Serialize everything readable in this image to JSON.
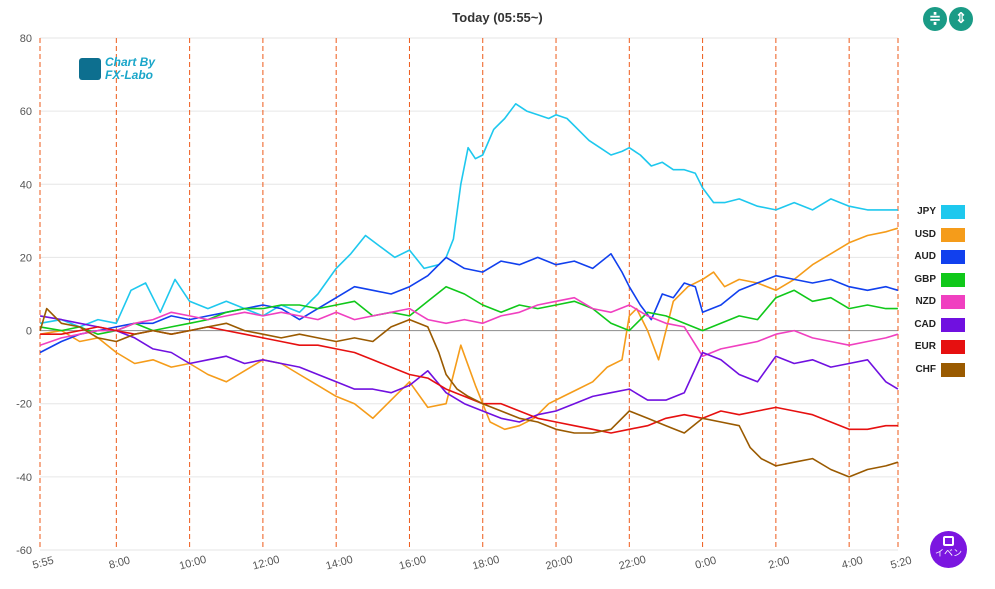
{
  "header": {
    "title": "Today  (05:55~)",
    "btn_split_icon": "split-vertical-icon",
    "btn_fit_icon": "fit-height-icon",
    "btn_split_glyph": "≑",
    "btn_fit_glyph": "⇕"
  },
  "logo": {
    "line1": "Chart By",
    "line2": "FX-Labo",
    "icon": "chart-logo-icon"
  },
  "event_button": {
    "label": "イベン",
    "icon": "calendar-icon"
  },
  "chart_data": {
    "type": "line",
    "title": "Today  (05:55~)",
    "xlabel": "",
    "ylabel": "",
    "ylim": [
      -60,
      80
    ],
    "yticks": [
      -60,
      -40,
      -20,
      0,
      20,
      40,
      60,
      80
    ],
    "xlim_hours": [
      5.9167,
      29.3333
    ],
    "xticks": [
      {
        "h": 5.9167,
        "label": "5:55"
      },
      {
        "h": 8,
        "label": "8:00"
      },
      {
        "h": 10,
        "label": "10:00"
      },
      {
        "h": 12,
        "label": "12:00"
      },
      {
        "h": 14,
        "label": "14:00"
      },
      {
        "h": 16,
        "label": "16:00"
      },
      {
        "h": 18,
        "label": "18:00"
      },
      {
        "h": 20,
        "label": "20:00"
      },
      {
        "h": 22,
        "label": "22:00"
      },
      {
        "h": 24,
        "label": "0:00"
      },
      {
        "h": 26,
        "label": "2:00"
      },
      {
        "h": 28,
        "label": "4:00"
      },
      {
        "h": 29.3333,
        "label": "5:20"
      }
    ],
    "vlines_hours": [
      5.9167,
      8,
      10,
      12,
      14,
      16,
      18,
      20,
      22,
      24,
      26,
      28,
      29.3333
    ],
    "grid": true,
    "legend_position": "right",
    "series": [
      {
        "name": "JPY",
        "color": "#1ec8ee",
        "x": [
          5.92,
          6.5,
          7,
          7.5,
          8,
          8.4,
          8.8,
          9.2,
          9.6,
          10,
          10.5,
          11,
          11.5,
          12,
          12.5,
          13,
          13.5,
          14,
          14.4,
          14.8,
          15.2,
          15.6,
          16,
          16.4,
          16.8,
          17,
          17.2,
          17.4,
          17.6,
          17.8,
          18,
          18.3,
          18.6,
          18.9,
          19.2,
          19.5,
          19.8,
          20,
          20.3,
          20.6,
          20.9,
          21.2,
          21.5,
          21.8,
          22,
          22.3,
          22.6,
          22.9,
          23.2,
          23.5,
          23.8,
          24,
          24.3,
          24.6,
          25,
          25.5,
          26,
          26.5,
          27,
          27.5,
          28,
          28.5,
          29,
          29.33
        ],
        "y": [
          2,
          3,
          1,
          3,
          2,
          11,
          13,
          5,
          14,
          8,
          6,
          8,
          6,
          4,
          7,
          5,
          10,
          17,
          21,
          26,
          23,
          20,
          22,
          17,
          18,
          20,
          25,
          40,
          50,
          47,
          48,
          55,
          58,
          62,
          60,
          59,
          58,
          59,
          58,
          55,
          52,
          50,
          48,
          49,
          50,
          48,
          45,
          46,
          44,
          44,
          43,
          39,
          35,
          35,
          36,
          34,
          33,
          35,
          33,
          36,
          34,
          33,
          33,
          33
        ]
      },
      {
        "name": "USD",
        "color": "#f59c1a",
        "x": [
          5.92,
          6.5,
          7,
          7.5,
          8,
          8.5,
          9,
          9.5,
          10,
          10.5,
          11,
          11.5,
          12,
          12.5,
          13,
          13.5,
          14,
          14.5,
          15,
          15.5,
          16,
          16.5,
          17,
          17.4,
          17.8,
          18.2,
          18.6,
          19,
          19.4,
          19.8,
          20.2,
          20.6,
          21,
          21.4,
          21.8,
          22,
          22.2,
          22.5,
          22.8,
          23.2,
          23.6,
          24,
          24.3,
          24.6,
          25,
          25.5,
          26,
          26.5,
          27,
          27.5,
          28,
          28.5,
          29,
          29.33
        ],
        "y": [
          -1,
          0,
          -3,
          -2,
          -6,
          -9,
          -8,
          -10,
          -9,
          -12,
          -14,
          -11,
          -8,
          -9,
          -12,
          -15,
          -18,
          -20,
          -24,
          -19,
          -14,
          -21,
          -20,
          -4,
          -15,
          -25,
          -27,
          -26,
          -24,
          -20,
          -18,
          -16,
          -14,
          -10,
          -8,
          4,
          6,
          0,
          -8,
          8,
          12,
          14,
          16,
          12,
          14,
          13,
          11,
          14,
          18,
          21,
          24,
          26,
          27,
          28
        ]
      },
      {
        "name": "AUD",
        "color": "#1140ee",
        "x": [
          5.92,
          6.5,
          7,
          7.5,
          8,
          8.5,
          9,
          9.5,
          10,
          10.5,
          11,
          11.5,
          12,
          12.5,
          13,
          13.5,
          14,
          14.5,
          15,
          15.5,
          16,
          16.5,
          17,
          17.5,
          18,
          18.5,
          19,
          19.5,
          20,
          20.5,
          21,
          21.5,
          21.8,
          22,
          22.3,
          22.6,
          22.9,
          23.2,
          23.5,
          23.8,
          24,
          24.5,
          25,
          25.5,
          26,
          26.5,
          27,
          27.5,
          28,
          28.5,
          29,
          29.33
        ],
        "y": [
          -6,
          -3,
          -1,
          0,
          1,
          2,
          2,
          4,
          3,
          4,
          5,
          6,
          7,
          6,
          3,
          6,
          9,
          12,
          11,
          10,
          12,
          15,
          20,
          17,
          16,
          19,
          18,
          20,
          18,
          19,
          17,
          21,
          16,
          12,
          7,
          3,
          10,
          9,
          13,
          12,
          5,
          7,
          11,
          13,
          15,
          14,
          13,
          14,
          12,
          11,
          12,
          11
        ]
      },
      {
        "name": "GBP",
        "color": "#10c81a",
        "x": [
          5.92,
          6.5,
          7,
          7.5,
          8,
          8.5,
          9,
          9.5,
          10,
          10.5,
          11,
          11.5,
          12,
          12.5,
          13,
          13.5,
          14,
          14.5,
          15,
          15.5,
          16,
          16.5,
          17,
          17.5,
          18,
          18.5,
          19,
          19.5,
          20,
          20.5,
          21,
          21.5,
          22,
          22.5,
          23,
          23.5,
          24,
          24.5,
          25,
          25.5,
          26,
          26.5,
          27,
          27.5,
          28,
          28.5,
          29,
          29.33
        ],
        "y": [
          1,
          0,
          1,
          -1,
          0,
          2,
          0,
          1,
          2,
          3,
          5,
          6,
          6,
          7,
          7,
          6,
          7,
          8,
          4,
          5,
          4,
          8,
          12,
          10,
          7,
          5,
          7,
          6,
          7,
          8,
          6,
          2,
          0,
          5,
          4,
          2,
          0,
          2,
          4,
          3,
          9,
          11,
          8,
          9,
          6,
          7,
          6,
          6
        ]
      },
      {
        "name": "NZD",
        "color": "#f040c0",
        "x": [
          5.92,
          6.5,
          7,
          7.5,
          8,
          8.5,
          9,
          9.5,
          10,
          10.5,
          11,
          11.5,
          12,
          12.5,
          13,
          13.5,
          14,
          14.5,
          15,
          15.5,
          16,
          16.5,
          17,
          17.5,
          18,
          18.5,
          19,
          19.5,
          20,
          20.5,
          21,
          21.5,
          22,
          22.5,
          23,
          23.5,
          24,
          24.5,
          25,
          25.5,
          26,
          26.5,
          27,
          27.5,
          28,
          28.5,
          29,
          29.33
        ],
        "y": [
          -4,
          -2,
          -1,
          0,
          0,
          2,
          3,
          5,
          4,
          3,
          4,
          5,
          4,
          5,
          4,
          3,
          5,
          3,
          4,
          5,
          6,
          3,
          2,
          3,
          2,
          4,
          5,
          7,
          8,
          9,
          6,
          5,
          7,
          4,
          2,
          1,
          -7,
          -5,
          -4,
          -3,
          -1,
          0,
          -2,
          -3,
          -4,
          -3,
          -2,
          -1
        ]
      },
      {
        "name": "CAD",
        "color": "#7010e0",
        "x": [
          5.92,
          6.5,
          7,
          7.5,
          8,
          8.5,
          9,
          9.5,
          10,
          10.5,
          11,
          11.5,
          12,
          12.5,
          13,
          13.5,
          14,
          14.5,
          15,
          15.5,
          16,
          16.5,
          17,
          17.5,
          18,
          18.5,
          19,
          19.5,
          20,
          20.5,
          21,
          21.5,
          22,
          22.5,
          23,
          23.5,
          24,
          24.5,
          25,
          25.5,
          26,
          26.5,
          27,
          27.5,
          28,
          28.5,
          29,
          29.33
        ],
        "y": [
          4,
          3,
          2,
          1,
          0,
          -2,
          -5,
          -6,
          -9,
          -8,
          -7,
          -9,
          -8,
          -9,
          -10,
          -12,
          -14,
          -16,
          -16,
          -17,
          -15,
          -11,
          -17,
          -20,
          -22,
          -24,
          -25,
          -23,
          -22,
          -20,
          -18,
          -17,
          -16,
          -19,
          -19,
          -17,
          -6,
          -8,
          -12,
          -14,
          -7,
          -9,
          -8,
          -10,
          -9,
          -8,
          -14,
          -16
        ]
      },
      {
        "name": "EUR",
        "color": "#e61010",
        "x": [
          5.92,
          6.5,
          7,
          7.5,
          8,
          8.5,
          9,
          9.5,
          10,
          10.5,
          11,
          11.5,
          12,
          12.5,
          13,
          13.5,
          14,
          14.5,
          15,
          15.5,
          16,
          16.5,
          17,
          17.5,
          18,
          18.5,
          19,
          19.5,
          20,
          20.5,
          21,
          21.5,
          22,
          22.5,
          23,
          23.5,
          24,
          24.5,
          25,
          25.5,
          26,
          26.5,
          27,
          27.5,
          28,
          28.5,
          29,
          29.33
        ],
        "y": [
          -1,
          -1,
          0,
          1,
          0,
          -1,
          0,
          -1,
          0,
          1,
          0,
          -1,
          -2,
          -3,
          -4,
          -4,
          -5,
          -6,
          -8,
          -10,
          -12,
          -13,
          -16,
          -18,
          -20,
          -20,
          -22,
          -24,
          -25,
          -26,
          -27,
          -28,
          -27,
          -26,
          -24,
          -23,
          -24,
          -22,
          -23,
          -22,
          -21,
          -22,
          -23,
          -25,
          -27,
          -27,
          -26,
          -26
        ]
      },
      {
        "name": "CHF",
        "color": "#9a5a00",
        "x": [
          5.92,
          6.1,
          6.5,
          7,
          7.5,
          8,
          8.5,
          9,
          9.5,
          10,
          10.5,
          11,
          11.5,
          12,
          12.5,
          13,
          13.5,
          14,
          14.5,
          15,
          15.5,
          16,
          16.5,
          16.8,
          17,
          17.3,
          17.6,
          18,
          18.5,
          19,
          19.5,
          20,
          20.5,
          21,
          21.5,
          22,
          22.5,
          23,
          23.5,
          24,
          24.5,
          25,
          25.3,
          25.6,
          26,
          26.5,
          27,
          27.5,
          28,
          28.5,
          29,
          29.33
        ],
        "y": [
          0,
          6,
          2,
          1,
          -2,
          -3,
          -1,
          0,
          -1,
          0,
          1,
          2,
          0,
          -1,
          -2,
          -1,
          -2,
          -3,
          -2,
          -3,
          1,
          3,
          1,
          -6,
          -12,
          -16,
          -18,
          -20,
          -22,
          -24,
          -25,
          -27,
          -28,
          -28,
          -27,
          -22,
          -24,
          -26,
          -28,
          -24,
          -25,
          -26,
          -32,
          -35,
          -37,
          -36,
          -35,
          -38,
          -40,
          -38,
          -37,
          -36
        ]
      }
    ]
  }
}
